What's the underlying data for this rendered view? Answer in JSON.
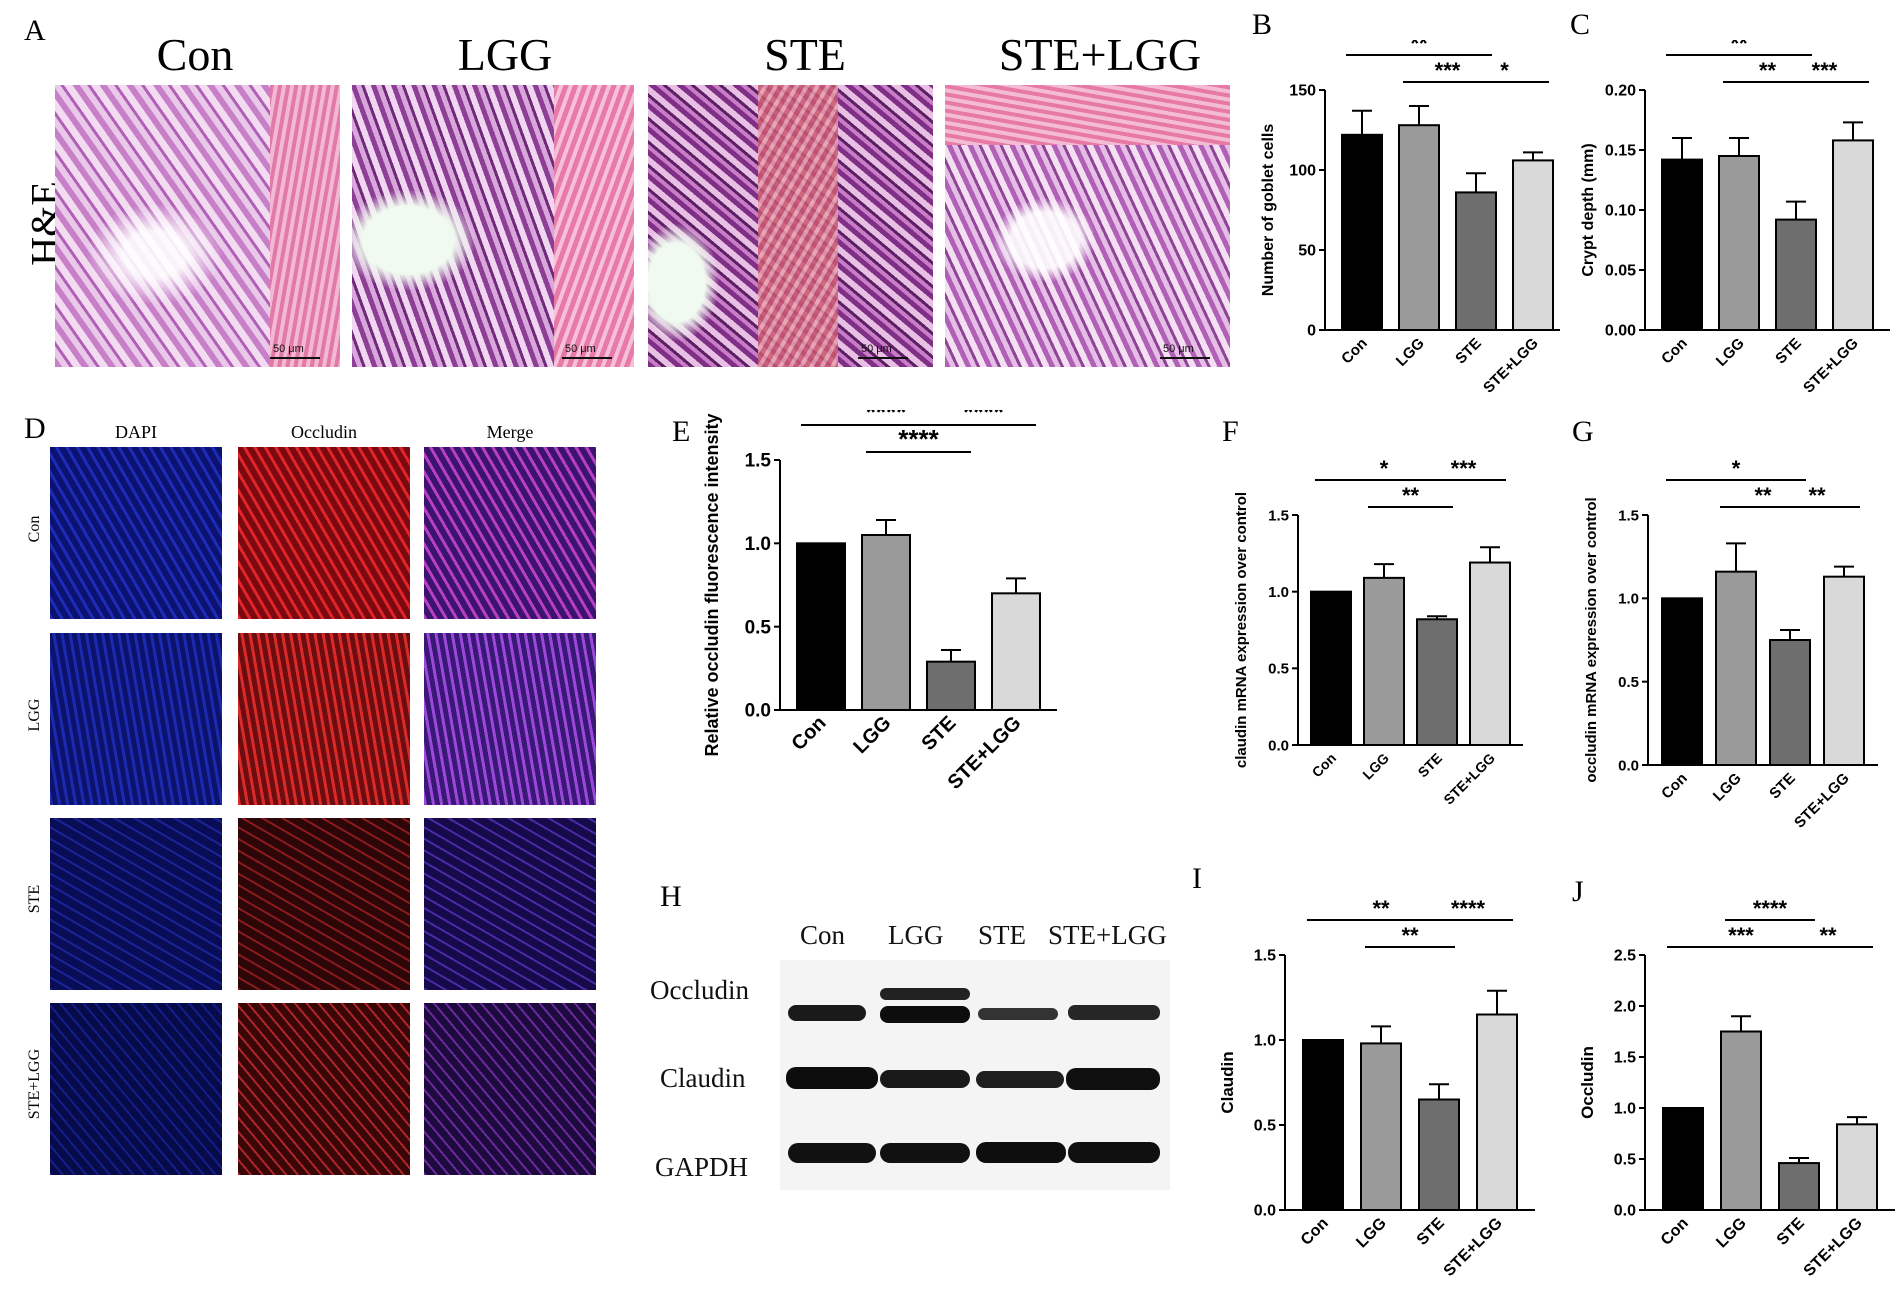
{
  "panels": {
    "A": {
      "letter": "A",
      "row_label": "H&E",
      "columns": [
        "Con",
        "LGG",
        "STE",
        "STE+LGG"
      ],
      "scale_label": "50 μm"
    },
    "D": {
      "letter": "D",
      "columns": [
        "DAPI",
        "Occludin",
        "Merge"
      ],
      "rows": [
        "Con",
        "LGG",
        "STE",
        "STE+LGG"
      ]
    },
    "H": {
      "letter": "H",
      "columns": [
        "Con",
        "LGG",
        "STE",
        "STE+LGG"
      ],
      "bands": [
        "Occludin",
        "Claudin",
        "GAPDH"
      ]
    }
  },
  "chart_data": [
    {
      "id": "B",
      "letter": "B",
      "type": "bar",
      "categories": [
        "Con",
        "LGG",
        "STE",
        "STE+LGG"
      ],
      "values": [
        122,
        128,
        86,
        106
      ],
      "errors": [
        15,
        12,
        12,
        5
      ],
      "colors": [
        "#000000",
        "#9a9a9a",
        "#6e6e6e",
        "#d9d9d9"
      ],
      "ylabel": "Number of goblet cells",
      "ylim": [
        0,
        150
      ],
      "yticks": [
        0,
        50,
        100,
        150
      ],
      "significance": [
        {
          "from": 0,
          "to": 2,
          "label": "**",
          "level": 2
        },
        {
          "from": 1,
          "to": 2,
          "label": "***",
          "level": 1
        },
        {
          "from": 2,
          "to": 3,
          "label": "*",
          "level": 1
        }
      ]
    },
    {
      "id": "C",
      "letter": "C",
      "type": "bar",
      "categories": [
        "Con",
        "LGG",
        "STE",
        "STE+LGG"
      ],
      "values": [
        0.142,
        0.145,
        0.092,
        0.158
      ],
      "errors": [
        0.018,
        0.015,
        0.015,
        0.015
      ],
      "colors": [
        "#000000",
        "#9a9a9a",
        "#6e6e6e",
        "#d9d9d9"
      ],
      "ylabel": "Crypt depth (mm)",
      "ylim": [
        0,
        0.2
      ],
      "yticks": [
        "0.00",
        "0.05",
        "0.10",
        "0.15",
        "0.20"
      ],
      "significance": [
        {
          "from": 0,
          "to": 2,
          "label": "**",
          "level": 2
        },
        {
          "from": 1,
          "to": 2,
          "label": "**",
          "level": 1
        },
        {
          "from": 2,
          "to": 3,
          "label": "***",
          "level": 1
        }
      ]
    },
    {
      "id": "E",
      "letter": "E",
      "type": "bar",
      "categories": [
        "Con",
        "LGG",
        "STE",
        "STE+LGG"
      ],
      "values": [
        1.0,
        1.05,
        0.29,
        0.7
      ],
      "errors": [
        0,
        0.09,
        0.07,
        0.09
      ],
      "colors": [
        "#000000",
        "#9a9a9a",
        "#6e6e6e",
        "#d9d9d9"
      ],
      "ylabel": "Relative occludin fluorescence intensity",
      "ylim": [
        0,
        1.5
      ],
      "yticks": [
        "0.0",
        "0.5",
        "1.0",
        "1.5"
      ],
      "significance": [
        {
          "from": 0,
          "to": 2,
          "label": "****",
          "level": 2
        },
        {
          "from": 2,
          "to": 3,
          "label": "****",
          "level": 2
        },
        {
          "from": 1,
          "to": 2,
          "label": "****",
          "level": 1
        }
      ]
    },
    {
      "id": "F",
      "letter": "F",
      "type": "bar",
      "categories": [
        "Con",
        "LGG",
        "STE",
        "STE+LGG"
      ],
      "values": [
        1.0,
        1.09,
        0.82,
        1.19
      ],
      "errors": [
        0,
        0.09,
        0.02,
        0.1
      ],
      "colors": [
        "#000000",
        "#9a9a9a",
        "#6e6e6e",
        "#d9d9d9"
      ],
      "ylabel": "claudin mRNA expression over control",
      "ylim": [
        0,
        1.5
      ],
      "yticks": [
        "0.0",
        "0.5",
        "1.0",
        "1.5"
      ],
      "significance": [
        {
          "from": 0,
          "to": 2,
          "label": "*",
          "level": 2
        },
        {
          "from": 2,
          "to": 3,
          "label": "***",
          "level": 2
        },
        {
          "from": 1,
          "to": 2,
          "label": "**",
          "level": 1
        }
      ]
    },
    {
      "id": "G",
      "letter": "G",
      "type": "bar",
      "categories": [
        "Con",
        "LGG",
        "STE",
        "STE+LGG"
      ],
      "values": [
        1.0,
        1.16,
        0.75,
        1.13
      ],
      "errors": [
        0,
        0.17,
        0.06,
        0.06
      ],
      "colors": [
        "#000000",
        "#9a9a9a",
        "#6e6e6e",
        "#d9d9d9"
      ],
      "ylabel": "occludin mRNA expression over control",
      "ylim": [
        0,
        1.5
      ],
      "yticks": [
        "0.0",
        "0.5",
        "1.0",
        "1.5"
      ],
      "significance": [
        {
          "from": 0,
          "to": 2,
          "label": "*",
          "level": 2
        },
        {
          "from": 1,
          "to": 2,
          "label": "**",
          "level": 1
        },
        {
          "from": 2,
          "to": 3,
          "label": "**",
          "level": 1
        }
      ]
    },
    {
      "id": "I",
      "letter": "I",
      "type": "bar",
      "categories": [
        "Con",
        "LGG",
        "STE",
        "STE+LGG"
      ],
      "values": [
        1.0,
        0.98,
        0.65,
        1.15
      ],
      "errors": [
        0,
        0.1,
        0.09,
        0.14
      ],
      "colors": [
        "#000000",
        "#9a9a9a",
        "#6e6e6e",
        "#d9d9d9"
      ],
      "ylabel": "Claudin",
      "ylim": [
        0,
        1.5
      ],
      "yticks": [
        "0.0",
        "0.5",
        "1.0",
        "1.5"
      ],
      "significance": [
        {
          "from": 0,
          "to": 2,
          "label": "**",
          "level": 2
        },
        {
          "from": 2,
          "to": 3,
          "label": "****",
          "level": 2
        },
        {
          "from": 1,
          "to": 2,
          "label": "**",
          "level": 1
        }
      ]
    },
    {
      "id": "J",
      "letter": "J",
      "type": "bar",
      "categories": [
        "Con",
        "LGG",
        "STE",
        "STE+LGG"
      ],
      "values": [
        1.0,
        1.75,
        0.46,
        0.84
      ],
      "errors": [
        0,
        0.15,
        0.05,
        0.07
      ],
      "colors": [
        "#000000",
        "#9a9a9a",
        "#6e6e6e",
        "#d9d9d9"
      ],
      "ylabel": "Occludin",
      "ylim": [
        0,
        2.5
      ],
      "yticks": [
        "0.0",
        "0.5",
        "1.0",
        "1.5",
        "2.0",
        "2.5"
      ],
      "significance": [
        {
          "from": 1,
          "to": 2,
          "label": "****",
          "level": 2
        },
        {
          "from": 0,
          "to": 2,
          "label": "***",
          "level": 1
        },
        {
          "from": 2,
          "to": 3,
          "label": "**",
          "level": 1
        }
      ]
    }
  ]
}
